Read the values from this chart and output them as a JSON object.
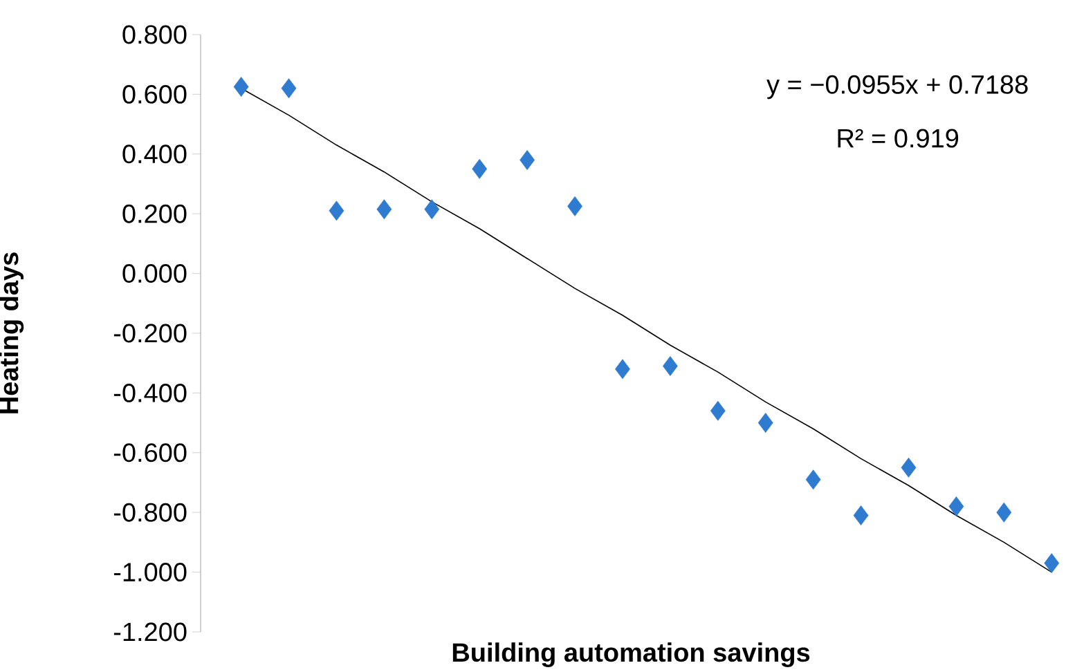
{
  "chart_data": {
    "type": "scatter",
    "xlabel": "Building automation savings",
    "ylabel": "Heating days",
    "categories": [
      null,
      null,
      null,
      null,
      null,
      null,
      null,
      null,
      null,
      null,
      null,
      null,
      null,
      null,
      null,
      null,
      null,
      null
    ],
    "tick_labels": "y",
    "ylim": [
      -1.2,
      0.8
    ],
    "yticks": [
      {
        "value": -1.2,
        "label": "-1.200"
      },
      {
        "value": -1.0,
        "label": "-1.000"
      },
      {
        "value": -0.8,
        "label": "-0.800"
      },
      {
        "value": -0.6,
        "label": "-0.600"
      },
      {
        "value": -0.4,
        "label": "-0.400"
      },
      {
        "value": -0.2,
        "label": "-0.200"
      },
      {
        "value": 0,
        "label": "0.000"
      },
      {
        "value": 0.2,
        "label": "0.200"
      },
      {
        "value": 0.4,
        "label": "0.400"
      },
      {
        "value": 0.6,
        "label": "0.600"
      },
      {
        "value": 0.8,
        "label": "0.800"
      }
    ],
    "annotations": [
      "y = −0.0955x + 0.7188",
      "R² = 0.919"
    ],
    "series": [
      {
        "color": "#2f7bd0",
        "marker": "diamond",
        "values": [
          0.625,
          0.62,
          0.21,
          0.215,
          0.215,
          0.35,
          0.38,
          0.225,
          -0.32,
          -0.31,
          -0.46,
          -0.5,
          -0.69,
          -0.81,
          -0.65,
          -0.78,
          -0.8,
          -0.97
        ]
      },
      {
        "type": "line",
        "color": "#000000",
        "marker": "none",
        "values": [
          0.62,
          0.53,
          0.43,
          0.34,
          0.24,
          0.15,
          0.05,
          -0.05,
          -0.14,
          -0.24,
          -0.33,
          -0.43,
          -0.52,
          -0.62,
          -0.71,
          -0.81,
          -0.9,
          -1.0
        ]
      }
    ]
  }
}
